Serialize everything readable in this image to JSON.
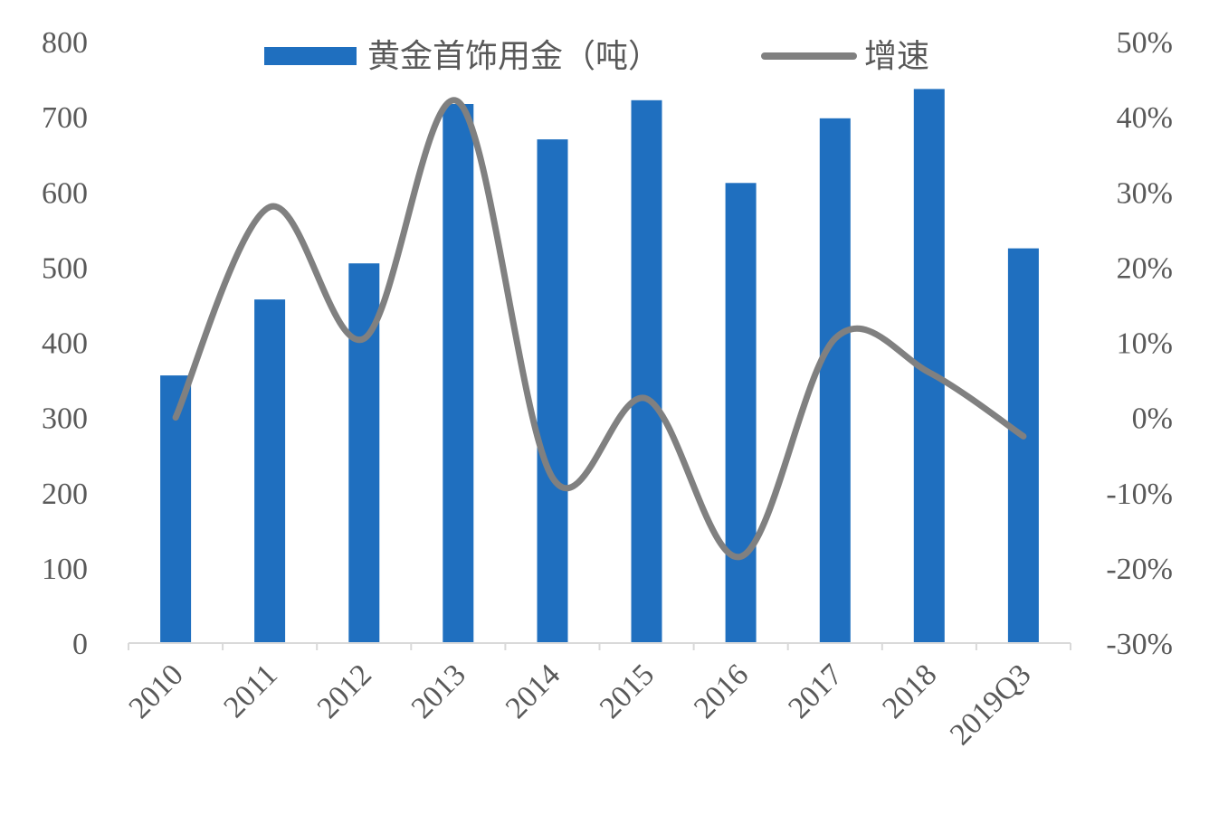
{
  "chart_data": {
    "type": "bar+line",
    "categories": [
      "2010",
      "2011",
      "2012",
      "2013",
      "2014",
      "2015",
      "2016",
      "2017",
      "2018",
      "2019Q3"
    ],
    "series": [
      {
        "name": "黄金首饰用金（吨）",
        "type": "bar",
        "axis": "left",
        "color": "#1f6fbf",
        "values": [
          356,
          457,
          505,
          717,
          670,
          722,
          612,
          698,
          737,
          525
        ]
      },
      {
        "name": "增速",
        "type": "line",
        "axis": "right",
        "color": "#808080",
        "values": [
          0.0,
          28.0,
          10.5,
          42.0,
          -8.0,
          2.5,
          -18.5,
          10.5,
          6.0,
          -2.5
        ]
      }
    ],
    "y_left": {
      "min": 0,
      "max": 800,
      "ticks": [
        "0",
        "100",
        "200",
        "300",
        "400",
        "500",
        "600",
        "700",
        "800"
      ]
    },
    "y_right": {
      "min": -30,
      "max": 50,
      "ticks": [
        "-30%",
        "-20%",
        "-10%",
        "0%",
        "10%",
        "20%",
        "30%",
        "40%",
        "50%"
      ]
    },
    "legend_position": "top",
    "grid": false
  }
}
